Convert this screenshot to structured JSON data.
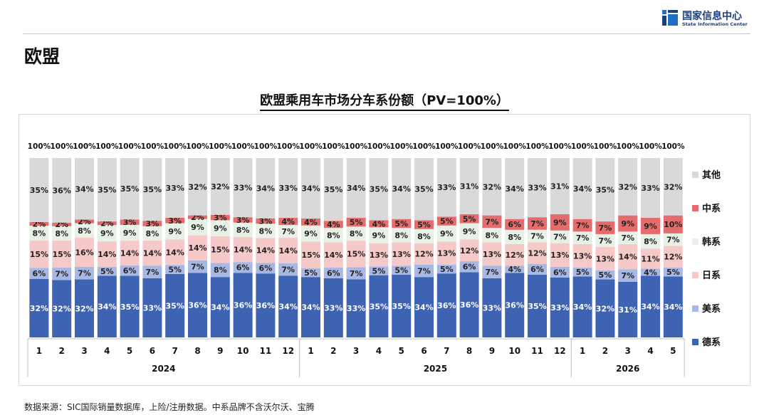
{
  "header": {
    "org_name_cn": "国家信息中心",
    "org_name_en": "State Information Center",
    "page_title": "欧盟"
  },
  "source_note": "数据来源：SIC国际销量数据库，上险/注册数据。中系品牌不含沃尔沃、宝腾",
  "colors": {
    "德系": "#3f63b3",
    "美系": "#a8b8e4",
    "日系": "#f6c9c9",
    "韩系": "#e8f1e6",
    "中系": "#e56c6c",
    "其他": "#d9d9d9"
  },
  "chart_data": {
    "type": "bar",
    "stacked": true,
    "percent_stacked": true,
    "title": "欧盟乘用车市场分车系份额（PV=100%）",
    "xlabel": "",
    "ylabel": "",
    "ylim": [
      0,
      100
    ],
    "grid": false,
    "legend_position": "right",
    "total_label": "100%",
    "categories": [
      "1",
      "2",
      "3",
      "4",
      "5",
      "6",
      "7",
      "8",
      "9",
      "10",
      "11",
      "12",
      "1",
      "2",
      "3",
      "4",
      "5",
      "6",
      "7",
      "8",
      "9",
      "10",
      "11",
      "12",
      "1",
      "2",
      "3",
      "4",
      "5"
    ],
    "year_groups": [
      {
        "label": "2024",
        "count": 12
      },
      {
        "label": "2025",
        "count": 12
      },
      {
        "label": "2026",
        "count": 5
      }
    ],
    "series": [
      {
        "name": "德系",
        "values": [
          32,
          32,
          32,
          34,
          35,
          33,
          35,
          36,
          34,
          36,
          36,
          34,
          34,
          33,
          33,
          35,
          35,
          34,
          36,
          36,
          33,
          36,
          35,
          33,
          34,
          32,
          31,
          34,
          34
        ]
      },
      {
        "name": "美系",
        "values": [
          6,
          7,
          7,
          5,
          6,
          7,
          5,
          7,
          8,
          6,
          6,
          7,
          5,
          6,
          7,
          5,
          5,
          7,
          5,
          6,
          7,
          4,
          6,
          6,
          5,
          5,
          7,
          4,
          5
        ]
      },
      {
        "name": "日系",
        "values": [
          15,
          15,
          16,
          14,
          14,
          14,
          14,
          14,
          15,
          14,
          14,
          14,
          15,
          14,
          15,
          13,
          13,
          12,
          13,
          12,
          13,
          12,
          12,
          13,
          13,
          13,
          14,
          11,
          12
        ]
      },
      {
        "name": "韩系",
        "values": [
          8,
          8,
          8,
          9,
          9,
          8,
          9,
          9,
          9,
          8,
          8,
          7,
          9,
          8,
          8,
          9,
          8,
          8,
          9,
          9,
          8,
          8,
          7,
          7,
          7,
          7,
          7,
          8,
          7
        ]
      },
      {
        "name": "中系",
        "values": [
          2,
          2,
          2,
          2,
          3,
          3,
          3,
          2,
          3,
          3,
          3,
          4,
          4,
          4,
          5,
          4,
          5,
          5,
          5,
          5,
          7,
          6,
          7,
          9,
          7,
          7,
          9,
          9,
          10
        ]
      },
      {
        "name": "其他",
        "values": [
          35,
          36,
          34,
          35,
          35,
          35,
          33,
          32,
          32,
          33,
          34,
          33,
          34,
          35,
          34,
          35,
          34,
          35,
          33,
          31,
          32,
          34,
          33,
          31,
          34,
          35,
          32,
          33,
          32
        ]
      }
    ]
  }
}
